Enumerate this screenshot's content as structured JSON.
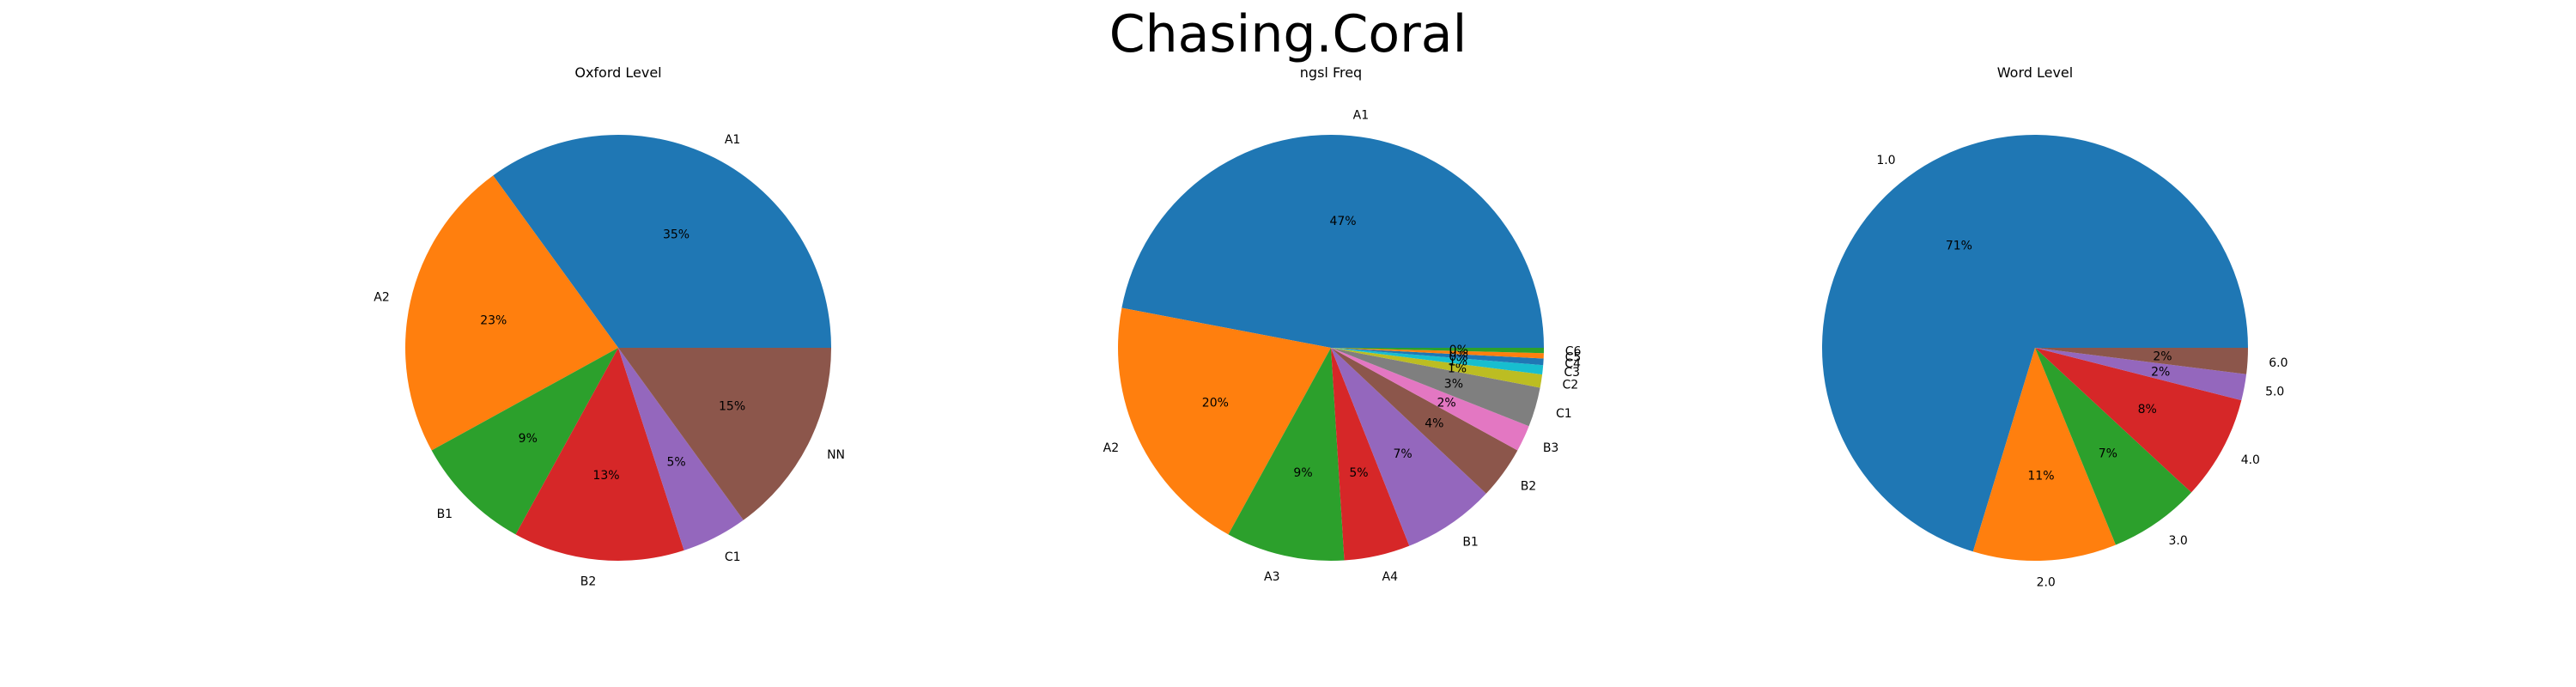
{
  "figure": {
    "title": "Chasing.Coral"
  },
  "chart_data": [
    {
      "type": "pie",
      "title": "Oxford Level",
      "labels": [
        "A1",
        "A2",
        "B1",
        "B2",
        "C1",
        "NN"
      ],
      "values": [
        35,
        23,
        9,
        13,
        5,
        15
      ],
      "pct_labels": [
        "35%",
        "23%",
        "9%",
        "13%",
        "5%",
        "15%"
      ],
      "colors": [
        "#1f77b4",
        "#ff7f0e",
        "#2ca02c",
        "#d62728",
        "#9467bd",
        "#8c564b"
      ],
      "start_angle": 0,
      "direction": "counterclockwise"
    },
    {
      "type": "pie",
      "title": "ngsl Freq",
      "labels": [
        "A1",
        "A2",
        "A3",
        "A4",
        "B1",
        "B2",
        "B3",
        "C1",
        "C2",
        "C3",
        "C4",
        "C5",
        "C6"
      ],
      "values": [
        47,
        20,
        9,
        5,
        7,
        4,
        2,
        3,
        1,
        0.7,
        0.5,
        0.4,
        0.4
      ],
      "pct_labels": [
        "47%",
        "20%",
        "9%",
        "5%",
        "7%",
        "4%",
        "2%",
        "3%",
        "1%",
        "1%",
        "0%",
        "0%",
        "0%"
      ],
      "colors": [
        "#1f77b4",
        "#ff7f0e",
        "#2ca02c",
        "#d62728",
        "#9467bd",
        "#8c564b",
        "#e377c2",
        "#7f7f7f",
        "#bcbd22",
        "#17becf",
        "#1f77b4",
        "#ff7f0e",
        "#2ca02c"
      ],
      "start_angle": 0,
      "direction": "counterclockwise"
    },
    {
      "type": "pie",
      "title": "Word Level",
      "labels": [
        "1.0",
        "2.0",
        "3.0",
        "4.0",
        "5.0",
        "6.0"
      ],
      "values": [
        71,
        11,
        7,
        8,
        2,
        2
      ],
      "pct_labels": [
        "71%",
        "11%",
        "7%",
        "8%",
        "2%",
        "2%"
      ],
      "colors": [
        "#1f77b4",
        "#ff7f0e",
        "#2ca02c",
        "#d62728",
        "#9467bd",
        "#8c564b"
      ],
      "start_angle": 0,
      "direction": "counterclockwise"
    }
  ]
}
